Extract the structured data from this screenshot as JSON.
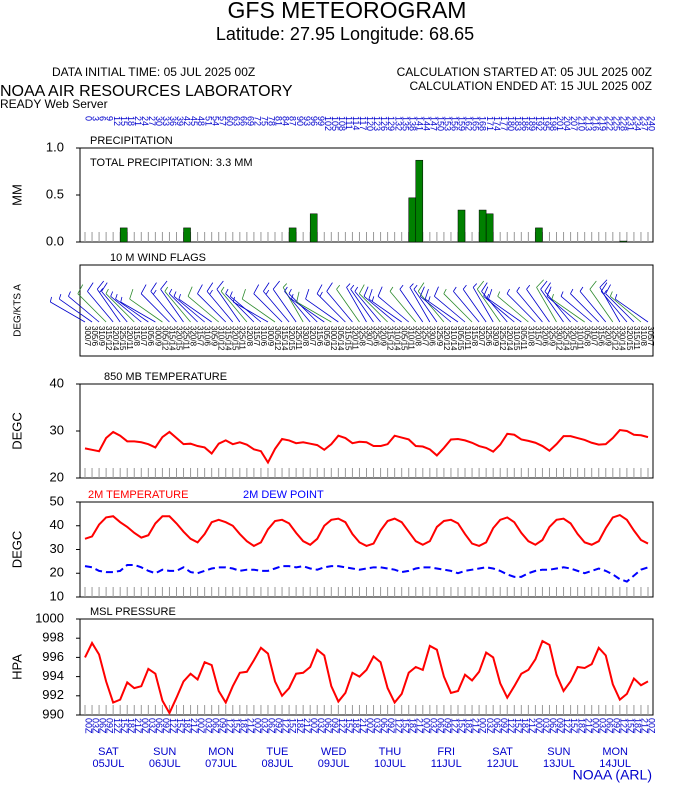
{
  "header": {
    "title": "GFS METEOROGRAM",
    "subtitle": "Latitude: 27.95 Longitude:  68.65",
    "initial_time": "DATA INITIAL TIME: 05 JUL 2025 00Z",
    "calc_started": "CALCULATION STARTED AT: 05 JUL 2025 00Z",
    "calc_ended": "CALCULATION ENDED AT: 15 JUL 2025 00Z",
    "lab": "NOAA AIR RESOURCES LABORATORY",
    "server": "READY Web Server",
    "footer": "NOAA (ARL)"
  },
  "time_axis": {
    "xlim": [
      0,
      240
    ],
    "xticks": [
      0,
      3,
      6,
      9,
      12,
      15,
      18,
      21,
      24,
      27,
      30,
      33,
      36,
      39,
      42,
      45,
      48,
      51,
      54,
      57,
      60,
      63,
      66,
      69,
      72,
      75,
      78,
      81,
      84,
      87,
      90,
      93,
      96,
      99,
      102,
      105,
      108,
      111,
      114,
      117,
      120,
      123,
      126,
      129,
      132,
      135,
      138,
      141,
      144,
      147,
      150,
      153,
      156,
      159,
      162,
      165,
      168,
      171,
      174,
      177,
      180,
      183,
      186,
      189,
      192,
      195,
      198,
      201,
      204,
      207,
      210,
      213,
      216,
      219,
      222,
      225,
      228,
      231,
      234,
      237,
      240
    ],
    "hour_labels": [
      "00Z",
      "03Z",
      "06Z",
      "09Z",
      "12Z",
      "15Z",
      "18Z",
      "21Z",
      "00Z",
      "03Z",
      "06Z",
      "09Z",
      "12Z",
      "15Z",
      "18Z",
      "21Z",
      "00Z",
      "03Z",
      "06Z",
      "09Z",
      "12Z",
      "15Z",
      "18Z",
      "21Z",
      "00Z",
      "03Z",
      "06Z",
      "09Z",
      "12Z",
      "15Z",
      "18Z",
      "21Z",
      "00Z",
      "03Z",
      "06Z",
      "09Z",
      "12Z",
      "15Z",
      "18Z",
      "21Z",
      "00Z",
      "03Z",
      "06Z",
      "09Z",
      "12Z",
      "15Z",
      "18Z",
      "21Z",
      "00Z",
      "03Z",
      "06Z",
      "09Z",
      "12Z",
      "15Z",
      "18Z",
      "21Z",
      "00Z",
      "03Z",
      "06Z",
      "09Z",
      "12Z",
      "15Z",
      "18Z",
      "21Z",
      "00Z",
      "03Z",
      "06Z",
      "09Z",
      "12Z",
      "15Z",
      "18Z",
      "21Z",
      "00Z",
      "03Z",
      "06Z",
      "09Z",
      "12Z",
      "15Z",
      "18Z",
      "21Z",
      "00Z"
    ],
    "days": [
      "SAT",
      "SUN",
      "MON",
      "TUE",
      "WED",
      "THU",
      "FRI",
      "SAT",
      "SUN",
      "MON"
    ],
    "dates": [
      "05JUL",
      "06JUL",
      "07JUL",
      "08JUL",
      "09JUL",
      "10JUL",
      "11JUL",
      "12JUL",
      "13JUL",
      "14JUL"
    ]
  },
  "chart_data": [
    {
      "type": "bar",
      "title": "PRECIPITATION",
      "annotation": "TOTAL PRECIPITATION:  3.3 MM",
      "ylabel": "MM",
      "color": "#008000",
      "ylim": [
        0,
        1
      ],
      "yticks": [
        {
          "value": 0,
          "label": "0.0"
        },
        {
          "value": 0.5,
          "label": "0.5"
        },
        {
          "value": 1,
          "label": "1.0"
        }
      ],
      "values": [
        0,
        0,
        0,
        0,
        0,
        0,
        0.15,
        0,
        0,
        0,
        0,
        0,
        0,
        0,
        0,
        0.15,
        0,
        0,
        0,
        0,
        0,
        0,
        0,
        0,
        0,
        0,
        0,
        0,
        0,
        0,
        0.15,
        0,
        0,
        0.3,
        0,
        0,
        0,
        0,
        0,
        0,
        0,
        0,
        0,
        0,
        0,
        0,
        0,
        0.47,
        0.87,
        0,
        0,
        0,
        0,
        0,
        0.34,
        0,
        0,
        0.34,
        0.3,
        0,
        0,
        0,
        0,
        0,
        0,
        0.15,
        0,
        0,
        0,
        0,
        0,
        0,
        0,
        0,
        0,
        0,
        0,
        0.01,
        0,
        0,
        0
      ]
    },
    {
      "type": "wind",
      "title": "10 M  WIND FLAGS",
      "ylabel": "DEG/KTS  A",
      "color": "#0000cc",
      "directions": [
        300,
        305,
        310,
        315,
        320,
        325,
        320,
        315,
        310,
        305,
        300,
        305,
        315,
        320,
        325,
        320,
        315,
        310,
        305,
        310,
        315,
        320,
        325,
        320,
        315,
        310,
        300,
        305,
        315,
        320,
        325,
        330,
        320,
        315,
        305,
        300,
        305,
        315,
        320,
        325,
        330,
        325,
        320,
        315,
        310,
        305,
        310,
        320,
        325,
        330,
        325,
        320,
        310,
        305,
        310,
        315,
        320,
        325,
        330,
        325,
        320,
        310,
        305,
        310,
        315,
        320,
        325,
        330,
        325,
        320,
        310,
        305,
        310,
        315,
        320,
        325,
        330,
        320,
        315,
        310,
        305
      ],
      "speeds": [
        7,
        6,
        9,
        12,
        14,
        15,
        11,
        8,
        7,
        6,
        9,
        12,
        14,
        15,
        11,
        8,
        7,
        6,
        9,
        12,
        14,
        15,
        11,
        8,
        7,
        6,
        9,
        12,
        14,
        15,
        11,
        8,
        7,
        6,
        9,
        12,
        14,
        15,
        11,
        8,
        7,
        6,
        9,
        12,
        14,
        15,
        11,
        8,
        7,
        6,
        9,
        12,
        14,
        15,
        11,
        8,
        7,
        6,
        9,
        12,
        14,
        15,
        11,
        8,
        7,
        6,
        9,
        12,
        14,
        15,
        11,
        8,
        7,
        6,
        9,
        12,
        14,
        15,
        11,
        8,
        7
      ],
      "labels": [
        "300/7",
        "305/6",
        "310/9",
        "315/12",
        "320/14",
        "325/15",
        "320/11",
        "315/8",
        "310/7",
        "305/6",
        "300/9",
        "305/12",
        "315/14",
        "320/15",
        "325/11",
        "320/8",
        "315/7",
        "310/6",
        "305/9",
        "310/12",
        "315/14",
        "320/15",
        "325/11",
        "320/8",
        "315/7",
        "310/6",
        "300/9",
        "305/12",
        "315/14",
        "320/15",
        "325/11",
        "330/8",
        "320/7",
        "315/6",
        "305/9",
        "300/12",
        "305/14",
        "315/15",
        "320/11",
        "325/8",
        "330/7",
        "325/6",
        "320/9",
        "315/12",
        "310/14",
        "305/15",
        "310/11",
        "320/8",
        "325/7",
        "330/6",
        "325/9",
        "320/12",
        "310/14",
        "305/15",
        "310/11",
        "315/8",
        "320/7",
        "325/6",
        "330/9",
        "325/12",
        "320/14",
        "310/15",
        "305/11",
        "310/8",
        "315/7",
        "320/6",
        "325/9",
        "330/12",
        "325/14",
        "320/15",
        "310/11",
        "305/8",
        "310/7",
        "315/6",
        "320/9",
        "325/12",
        "330/14",
        "320/15",
        "315/11",
        "310/8",
        "305/7"
      ]
    },
    {
      "type": "line",
      "title": "850 MB  TEMPERATURE",
      "ylabel": "DEGC",
      "ylim": [
        20,
        40
      ],
      "yticks": [
        20,
        30,
        40
      ],
      "series": [
        {
          "color": "#ff0000",
          "values": [
            26.3,
            26.0,
            25.7,
            28.5,
            29.8,
            29.0,
            27.8,
            27.8,
            27.6,
            27.2,
            26.5,
            28.7,
            29.8,
            28.5,
            27.2,
            27.3,
            26.8,
            26.5,
            25.2,
            27.3,
            28.0,
            27.2,
            27.6,
            27.1,
            26.1,
            25.7,
            23.3,
            26.2,
            28.3,
            28.0,
            27.4,
            27.6,
            27.3,
            27.0,
            26.0,
            27.2,
            29.0,
            28.5,
            27.4,
            27.7,
            27.6,
            26.8,
            26.8,
            27.2,
            29.0,
            28.6,
            28.2,
            26.8,
            26.7,
            26.1,
            24.8,
            26.4,
            28.2,
            28.3,
            28.0,
            27.5,
            26.8,
            26.4,
            25.6,
            27.1,
            29.4,
            29.2,
            28.2,
            27.9,
            27.5,
            26.8,
            25.8,
            27.2,
            28.9,
            28.9,
            28.5,
            28.1,
            27.5,
            27.1,
            27.2,
            28.5,
            30.2,
            30.0,
            29.2,
            29.1,
            28.7
          ]
        }
      ]
    },
    {
      "type": "line",
      "ylabel": "DEGC",
      "ylim": [
        10,
        50
      ],
      "yticks": [
        10,
        20,
        30,
        40,
        50
      ],
      "series": [
        {
          "name": "2M TEMPERATURE",
          "color": "#ff0000",
          "values": [
            34.5,
            35.5,
            40.5,
            43.5,
            44.0,
            41.5,
            39.5,
            37.0,
            35.0,
            36.0,
            41.0,
            44.0,
            44.0,
            41.0,
            37.5,
            34.5,
            33.0,
            36.5,
            41.5,
            42.5,
            41.5,
            40.0,
            36.5,
            33.5,
            31.5,
            33.0,
            38.5,
            42.0,
            42.5,
            41.0,
            37.0,
            33.5,
            32.0,
            34.5,
            40.0,
            42.5,
            43.0,
            41.5,
            36.5,
            33.0,
            31.5,
            32.5,
            38.0,
            42.0,
            43.0,
            41.5,
            37.5,
            33.5,
            32.0,
            33.5,
            39.5,
            42.0,
            42.5,
            41.0,
            36.5,
            32.5,
            31.5,
            33.0,
            39.0,
            42.5,
            43.5,
            41.5,
            37.0,
            33.5,
            32.0,
            34.0,
            39.5,
            42.5,
            43.0,
            41.0,
            36.5,
            33.0,
            32.0,
            33.5,
            39.0,
            43.5,
            44.5,
            42.5,
            38.0,
            34.0,
            32.5
          ]
        },
        {
          "name": "2M  DEW POINT",
          "color": "#0000ff",
          "dashed": true,
          "values": [
            23.0,
            22.5,
            21.0,
            20.5,
            20.5,
            21.0,
            23.5,
            23.5,
            22.5,
            21.0,
            20.0,
            21.5,
            21.0,
            21.0,
            22.5,
            20.5,
            20.0,
            21.0,
            22.0,
            22.5,
            22.5,
            22.0,
            21.0,
            21.5,
            21.5,
            21.0,
            21.0,
            22.0,
            23.0,
            23.0,
            22.5,
            23.0,
            22.0,
            21.5,
            22.5,
            23.0,
            23.0,
            22.5,
            22.0,
            21.5,
            22.0,
            22.5,
            22.5,
            22.0,
            21.5,
            20.5,
            21.0,
            22.0,
            22.5,
            22.5,
            22.0,
            21.5,
            21.0,
            20.0,
            21.0,
            21.5,
            22.0,
            22.5,
            22.0,
            21.0,
            19.5,
            18.5,
            18.5,
            20.0,
            21.0,
            21.5,
            21.5,
            22.0,
            22.5,
            22.0,
            21.0,
            20.0,
            21.0,
            22.0,
            21.0,
            19.5,
            17.5,
            16.5,
            19.0,
            21.5,
            22.5
          ]
        }
      ]
    },
    {
      "type": "line",
      "title": "MSL PRESSURE",
      "ylabel": "HPA",
      "ylim": [
        990,
        1000
      ],
      "yticks": [
        990,
        992,
        994,
        996,
        998,
        1000
      ],
      "series": [
        {
          "color": "#ff0000",
          "values": [
            996.0,
            997.5,
            996.3,
            993.5,
            991.3,
            991.6,
            993.4,
            992.8,
            993.0,
            994.8,
            994.3,
            991.5,
            990.2,
            991.8,
            993.5,
            994.3,
            993.7,
            995.5,
            995.2,
            992.5,
            991.3,
            993.0,
            994.4,
            994.5,
            995.7,
            997.0,
            996.4,
            993.5,
            992.0,
            992.8,
            994.3,
            994.4,
            995.0,
            996.8,
            996.2,
            993.0,
            991.4,
            992.3,
            994.4,
            994.0,
            994.7,
            996.1,
            995.5,
            992.8,
            991.3,
            992.2,
            994.4,
            995.0,
            994.7,
            997.2,
            996.8,
            994.0,
            992.3,
            992.5,
            994.2,
            993.6,
            994.5,
            996.5,
            996.0,
            993.3,
            991.8,
            993.0,
            994.3,
            994.7,
            995.8,
            997.7,
            997.3,
            994.2,
            992.5,
            993.5,
            995.0,
            994.9,
            995.3,
            997.0,
            996.2,
            993.2,
            991.6,
            992.2,
            993.8,
            993.1,
            993.5
          ]
        }
      ]
    }
  ]
}
